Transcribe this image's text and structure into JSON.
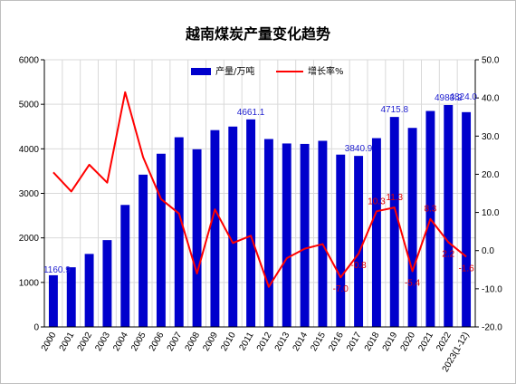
{
  "chart_data": {
    "type": "bar",
    "title": "越南煤炭产量变化趋势",
    "categories": [
      "2000",
      "2001",
      "2002",
      "2003",
      "2004",
      "2005",
      "2006",
      "2007",
      "2008",
      "2009",
      "2010",
      "2011",
      "2012",
      "2013",
      "2014",
      "2015",
      "2016",
      "2017",
      "2018",
      "2019",
      "2020",
      "2021",
      "2022",
      "2023(1-12)"
    ],
    "series": [
      {
        "name": "产量/万吨",
        "chart": "bar",
        "axis": "left",
        "color": "#0000cc",
        "values": [
          1160.9,
          1340,
          1640,
          1950,
          2740,
          3420,
          3890,
          4260,
          3990,
          4420,
          4500,
          4661.1,
          4220,
          4120,
          4110,
          4180,
          3870,
          3840.9,
          4240,
          4715.8,
          4470,
          4850,
          4983.2,
          4824
        ]
      },
      {
        "name": "增长率%",
        "chart": "line",
        "axis": "right",
        "color": "#ff0000",
        "values": [
          20.5,
          15.5,
          22.5,
          17.8,
          41.5,
          24.5,
          13.5,
          9.7,
          -6.0,
          10.8,
          2.0,
          3.9,
          -9.5,
          -2.0,
          0.5,
          1.7,
          -7.0,
          -0.8,
          10.3,
          11.3,
          -5.4,
          8.3,
          2.2,
          -1.6
        ]
      }
    ],
    "bar_labels": [
      {
        "index": 0,
        "text": "1160.9"
      },
      {
        "index": 11,
        "text": "4661.1"
      },
      {
        "index": 17,
        "text": "3840.9"
      },
      {
        "index": 19,
        "text": "4715.8"
      },
      {
        "index": 22,
        "text": "4983.2"
      },
      {
        "index": 23,
        "text": "4824.0"
      }
    ],
    "line_labels": [
      {
        "index": 16,
        "text": "-7.0"
      },
      {
        "index": 17,
        "text": "-0.8"
      },
      {
        "index": 18,
        "text": "10.3"
      },
      {
        "index": 19,
        "text": "11.3"
      },
      {
        "index": 20,
        "text": "-5.4"
      },
      {
        "index": 21,
        "text": "8.3"
      },
      {
        "index": 22,
        "text": "2.2"
      },
      {
        "index": 23,
        "text": "-1.6"
      }
    ],
    "y_left": {
      "min": 0,
      "max": 6000,
      "step": 1000,
      "ticks": [
        "0",
        "1000",
        "2000",
        "3000",
        "4000",
        "5000",
        "6000"
      ]
    },
    "y_right": {
      "min": -20,
      "max": 50,
      "step": 10,
      "ticks": [
        "-20.0",
        "-10.0",
        "0.0",
        "10.0",
        "20.0",
        "30.0",
        "40.0",
        "50.0"
      ]
    },
    "grid": true,
    "legend": "top-center"
  }
}
